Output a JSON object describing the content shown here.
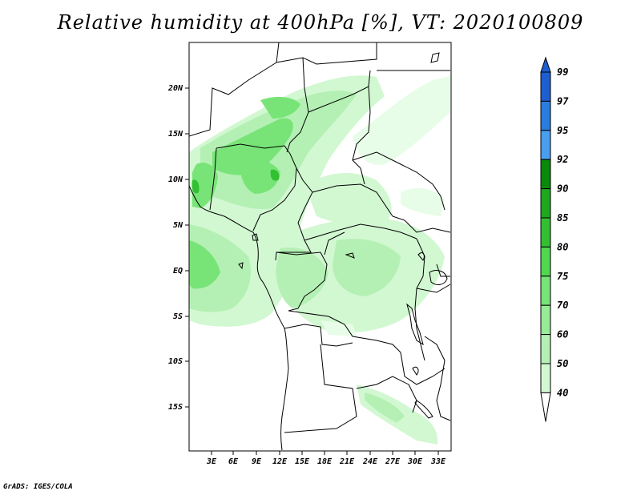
{
  "title": "Relative humidity at 400hPa [%], VT: 2020100809",
  "credit": "GrADS: IGES/COLA",
  "map": {
    "variable": "Relative humidity",
    "level": "400hPa",
    "units": "%",
    "valid_time": "2020100809",
    "lat_labels": [
      "20N",
      "15N",
      "10N",
      "5N",
      "EQ",
      "5S",
      "10S",
      "15S"
    ],
    "lon_labels": [
      "3E",
      "6E",
      "9E",
      "12E",
      "15E",
      "18E",
      "21E",
      "24E",
      "27E",
      "30E",
      "33E"
    ]
  },
  "colorbar": {
    "levels": [
      "99",
      "97",
      "95",
      "92",
      "90",
      "85",
      "80",
      "75",
      "70",
      "60",
      "50",
      "40"
    ],
    "colors": [
      "#1e5fd0",
      "#2a7de0",
      "#4a9ef0",
      "#0a8a0a",
      "#1ea81e",
      "#32c032",
      "#50d850",
      "#78e478",
      "#98ec98",
      "#b4f0b4",
      "#d2f8d2",
      "#e8fde8"
    ]
  }
}
